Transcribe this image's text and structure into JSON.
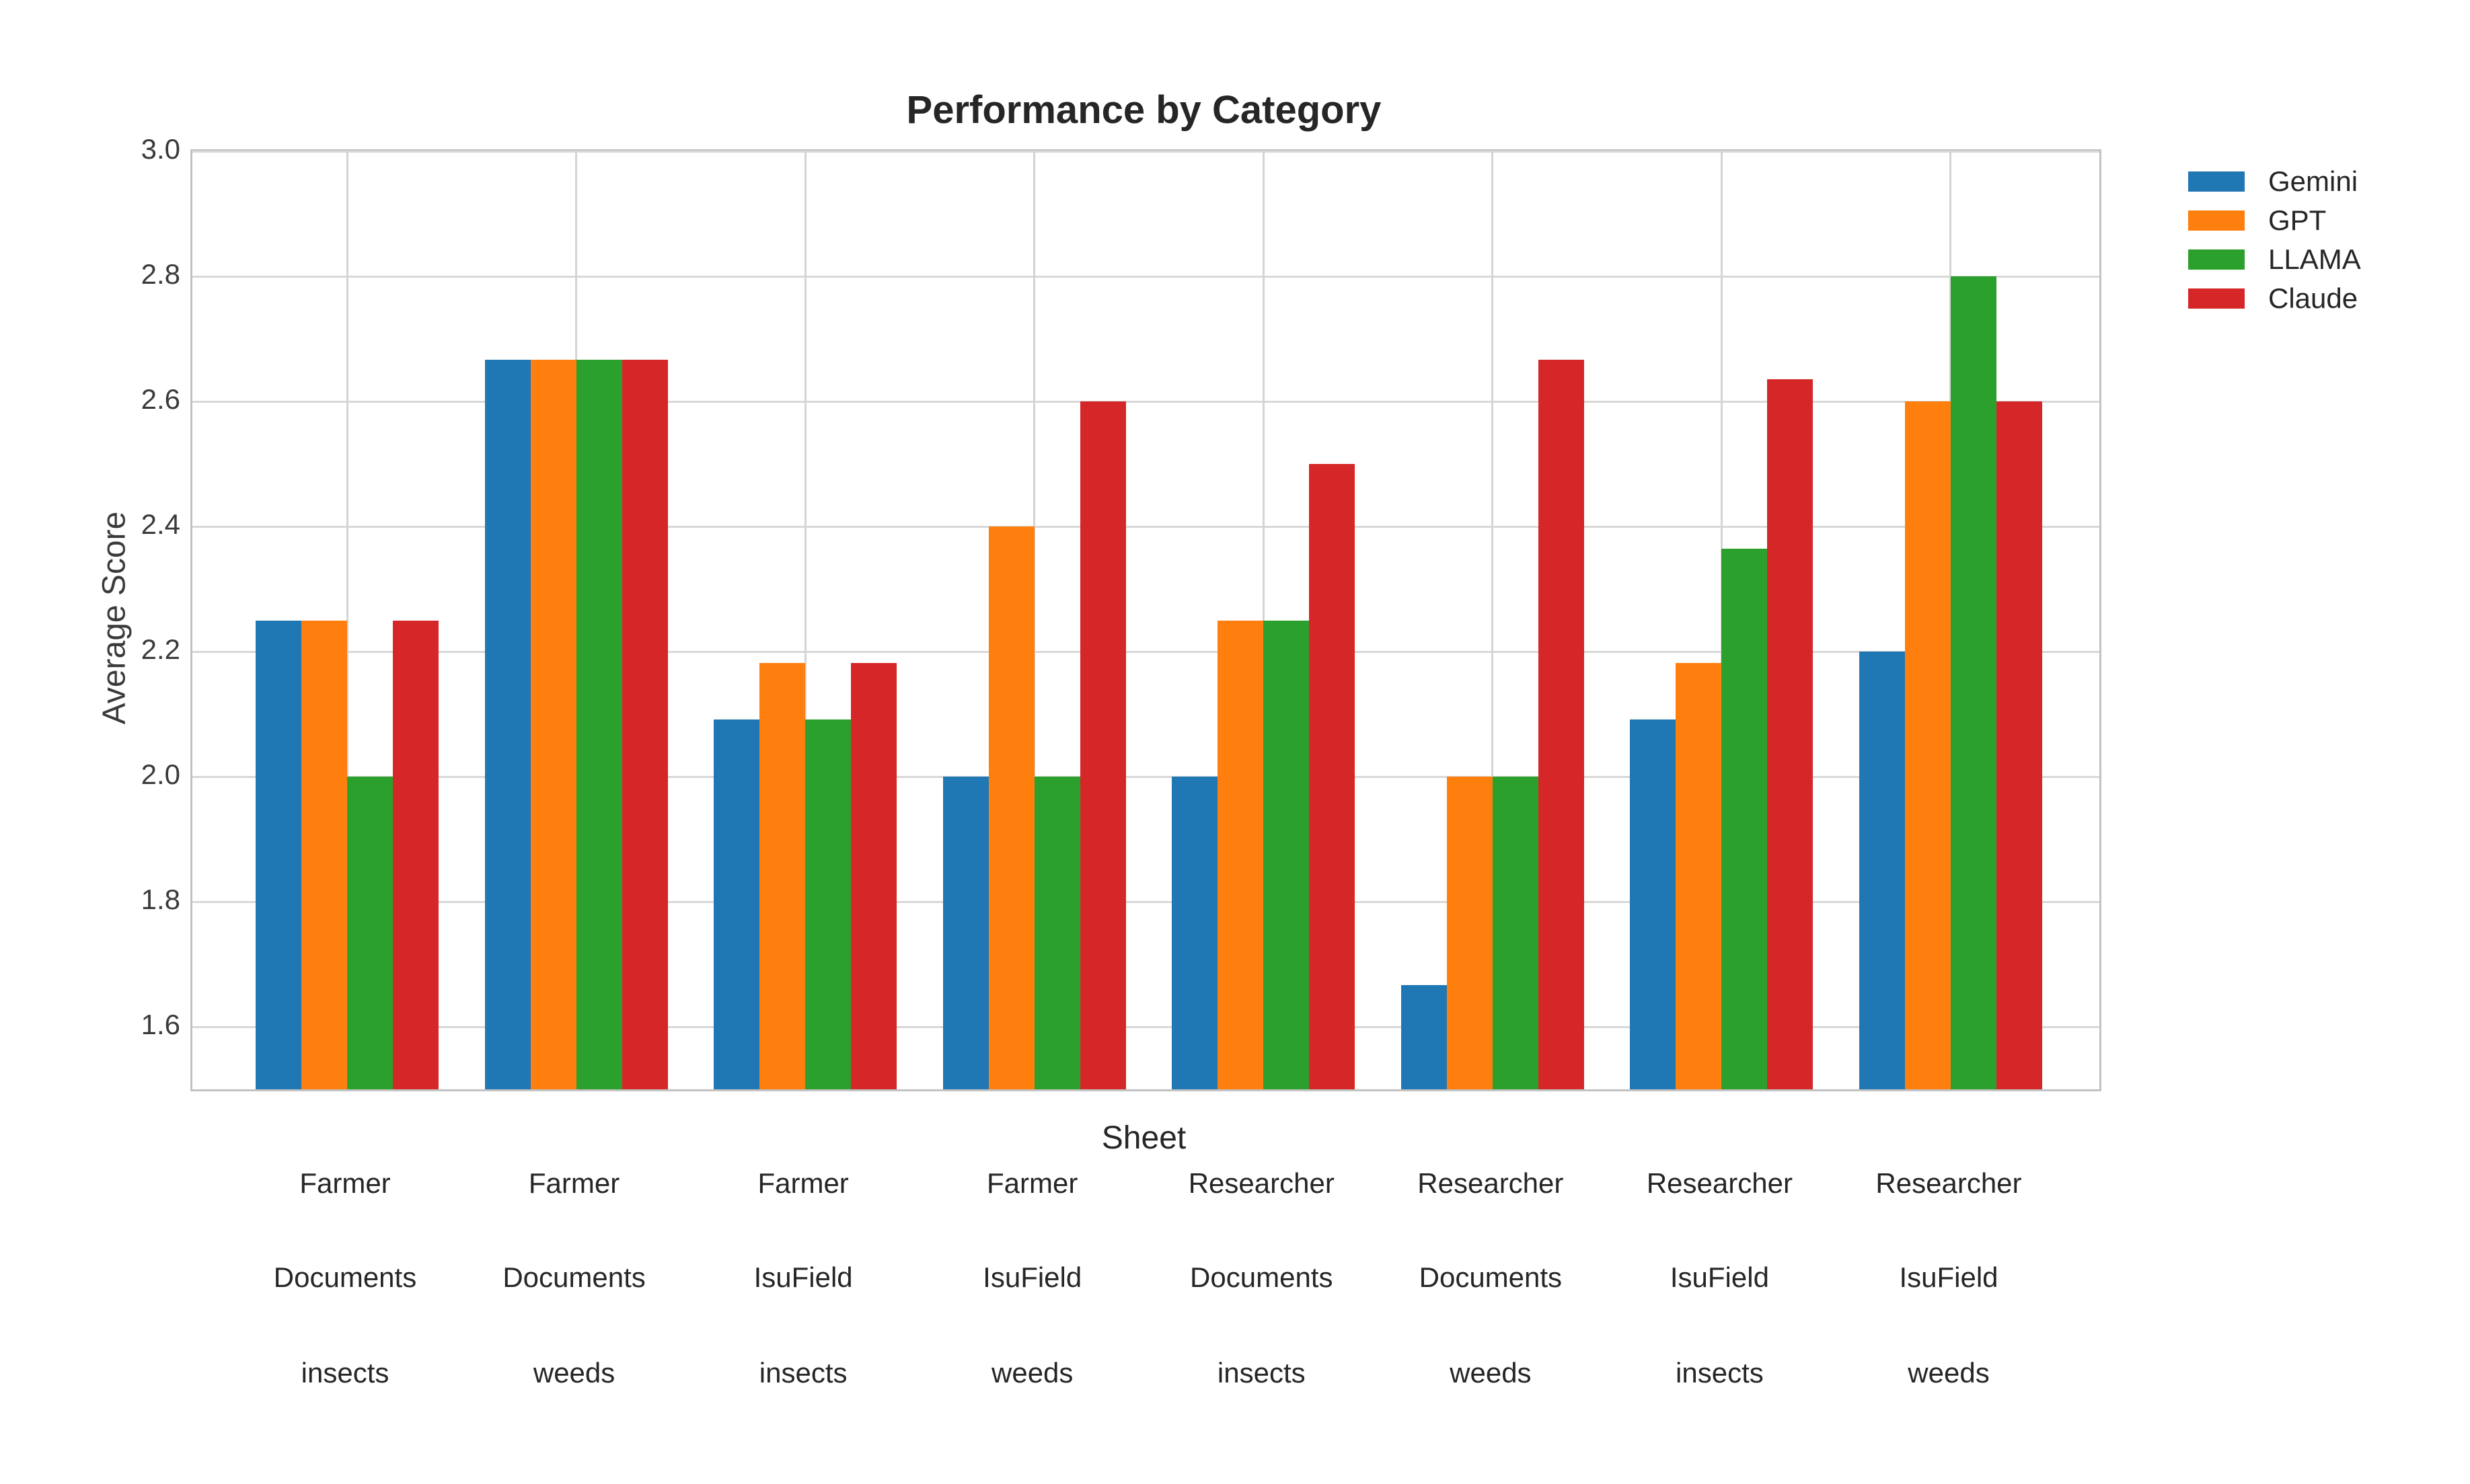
{
  "title": "Performance by Category",
  "colors": {
    "background": "#ffffff",
    "text": "#262626",
    "grid": "#d8d8d8",
    "spine": "#c2c2c2",
    "gemini_blue": "#1f77b4",
    "gpt_orange": "#ff7f0e",
    "llama_green": "#2ca02c",
    "claude_red": "#d62728"
  },
  "chart_data": {
    "type": "bar",
    "title": "Performance by Category",
    "xlabel": "Sheet",
    "ylabel": "Average Score",
    "ylim": [
      1.5,
      3.0
    ],
    "yticks": [
      1.6,
      1.8,
      2.0,
      2.2,
      2.4,
      2.6,
      2.8,
      3.0
    ],
    "grid": true,
    "grid_axes": "both",
    "legend_position": "outside upper right",
    "categories": [
      [
        "Farmer",
        "Documents",
        "insects"
      ],
      [
        "Farmer",
        "Documents",
        "weeds"
      ],
      [
        "Farmer",
        "IsuField",
        "insects"
      ],
      [
        "Farmer",
        "IsuField",
        "weeds"
      ],
      [
        "Researcher",
        "Documents",
        "insects"
      ],
      [
        "Researcher",
        "Documents",
        "weeds"
      ],
      [
        "Researcher",
        "IsuField",
        "insects"
      ],
      [
        "Researcher",
        "IsuField",
        "weeds"
      ]
    ],
    "series": [
      {
        "name": "Gemini",
        "color": "#1f77b4",
        "values": [
          2.25,
          2.667,
          2.091,
          2.0,
          2.0,
          1.667,
          2.091,
          2.2
        ]
      },
      {
        "name": "GPT",
        "color": "#ff7f0e",
        "values": [
          2.25,
          2.667,
          2.182,
          2.4,
          2.25,
          2.0,
          2.182,
          2.6
        ]
      },
      {
        "name": "LLAMA",
        "color": "#2ca02c",
        "values": [
          2.0,
          2.667,
          2.091,
          2.0,
          2.25,
          2.0,
          2.364,
          2.8
        ]
      },
      {
        "name": "Claude",
        "color": "#d62728",
        "values": [
          2.25,
          2.667,
          2.182,
          2.6,
          2.5,
          2.667,
          2.636,
          2.6
        ]
      }
    ]
  }
}
